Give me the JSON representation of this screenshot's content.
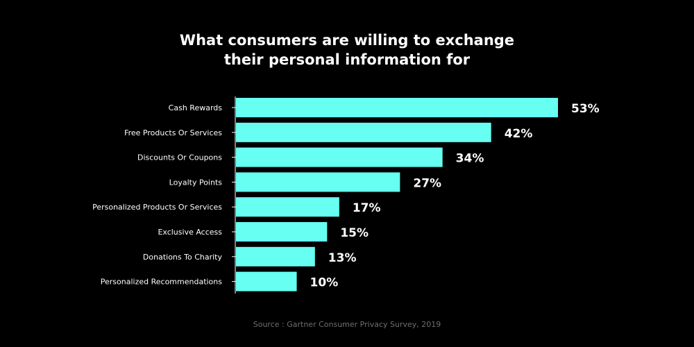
{
  "chart_data": {
    "type": "bar",
    "orientation": "horizontal",
    "title_lines": [
      "What consumers are willing to exchange",
      "their personal information for"
    ],
    "categories": [
      "Cash Rewards",
      "Free Products Or Services",
      "Discounts Or Coupons",
      "Loyalty Points",
      "Personalized Products Or Services",
      "Exclusive Access",
      "Donations To Charity",
      "Personalized Recommendations"
    ],
    "values": [
      53,
      42,
      34,
      27,
      17,
      15,
      13,
      10
    ],
    "value_labels": [
      "53%",
      "42%",
      "34%",
      "27%",
      "17%",
      "15%",
      "13%",
      "10%"
    ],
    "xlim": [
      0,
      53
    ],
    "grid": false,
    "source": "Source : Gartner Consumer Privacy Survey, 2019",
    "colors": {
      "background": "#000000",
      "bar": "#66fff2",
      "text": "#ffffff",
      "axis": "#ffffff",
      "source_text": "#6f6f6f"
    }
  }
}
